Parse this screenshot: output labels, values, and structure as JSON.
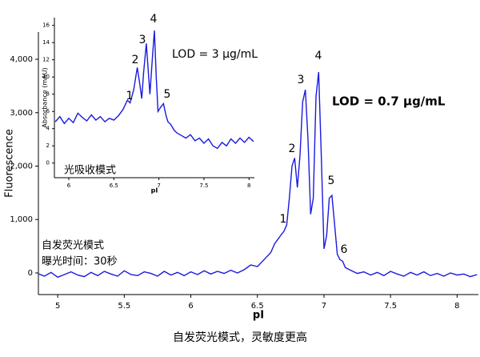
{
  "caption": "自发荧光模式，灵敏度更高",
  "chart_data": [
    {
      "type": "line",
      "x_label": "pI",
      "y_label": "Fluorescence",
      "color": "#1a1adf",
      "xlim": [
        4.855,
        8.16
      ],
      "ylim": [
        -405,
        4510
      ],
      "xticks": [
        5,
        5.5,
        6,
        6.5,
        7,
        7.5,
        8
      ],
      "yticks": [
        0,
        {
          "value": 1000,
          "label": "1,000"
        },
        {
          "value": 2000,
          "label": "2,000"
        },
        {
          "value": 3000,
          "label": "3,000"
        },
        {
          "value": 4000,
          "label": "4,000"
        }
      ],
      "x": [
        4.86,
        4.9,
        4.95,
        5,
        5.05,
        5.1,
        5.15,
        5.2,
        5.25,
        5.3,
        5.35,
        5.4,
        5.45,
        5.5,
        5.55,
        5.6,
        5.65,
        5.7,
        5.75,
        5.8,
        5.85,
        5.9,
        5.95,
        6,
        6.05,
        6.1,
        6.15,
        6.2,
        6.25,
        6.3,
        6.35,
        6.4,
        6.45,
        6.5,
        6.55,
        6.6,
        6.63,
        6.66,
        6.68,
        6.7,
        6.72,
        6.74,
        6.76,
        6.78,
        6.8,
        6.82,
        6.84,
        6.86,
        6.88,
        6.9,
        6.92,
        6.94,
        6.96,
        6.98,
        7,
        7.02,
        7.04,
        7.06,
        7.08,
        7.1,
        7.12,
        7.14,
        7.16,
        7.2,
        7.25,
        7.3,
        7.35,
        7.4,
        7.45,
        7.5,
        7.55,
        7.6,
        7.65,
        7.7,
        7.75,
        7.8,
        7.85,
        7.9,
        7.95,
        8,
        8.05,
        8.1,
        8.15
      ],
      "values": [
        -20,
        -60,
        10,
        -80,
        -30,
        20,
        -40,
        -70,
        10,
        -50,
        30,
        -20,
        -60,
        40,
        -30,
        -50,
        20,
        -10,
        -60,
        30,
        -40,
        10,
        -50,
        20,
        -30,
        40,
        -20,
        30,
        -10,
        50,
        0,
        60,
        150,
        120,
        250,
        380,
        550,
        650,
        720,
        780,
        900,
        1400,
        2000,
        2150,
        1600,
        2200,
        3200,
        3430,
        2500,
        1100,
        1400,
        3300,
        3760,
        2200,
        450,
        700,
        1400,
        1450,
        900,
        350,
        250,
        220,
        100,
        50,
        -10,
        20,
        -40,
        10,
        -50,
        30,
        -20,
        -60,
        10,
        -40,
        20,
        -50,
        -10,
        -60,
        0,
        -40,
        -20,
        -70,
        -30
      ],
      "annotations": [
        "1",
        "2",
        "3",
        "4",
        "5",
        "6",
        "自发荧光模式",
        "曝光时间：30秒",
        "LOD = 0.7 μg/mL"
      ]
    },
    {
      "type": "line",
      "x_label": "pI",
      "y_label": "Absorbance (mAU)",
      "color": "#1a1adf",
      "xlim": [
        5.84,
        8.06
      ],
      "ylim": [
        -1.7,
        16.9
      ],
      "xticks": [
        6,
        6.5,
        7,
        7.5,
        8
      ],
      "yticks": [
        0,
        2,
        4,
        6,
        8,
        10,
        12,
        14,
        16
      ],
      "x": [
        5.85,
        5.9,
        5.95,
        6,
        6.05,
        6.1,
        6.15,
        6.2,
        6.25,
        6.3,
        6.35,
        6.4,
        6.45,
        6.5,
        6.55,
        6.6,
        6.65,
        6.68,
        6.72,
        6.76,
        6.79,
        6.81,
        6.83,
        6.86,
        6.88,
        6.9,
        6.93,
        6.95,
        6.97,
        6.99,
        7.02,
        7.05,
        7.08,
        7.1,
        7.13,
        7.17,
        7.2,
        7.25,
        7.3,
        7.35,
        7.4,
        7.45,
        7.5,
        7.55,
        7.6,
        7.65,
        7.7,
        7.75,
        7.8,
        7.85,
        7.9,
        7.95,
        8,
        8.05
      ],
      "values": [
        4.8,
        5.4,
        4.6,
        5.2,
        4.7,
        5.8,
        5.3,
        4.9,
        5.6,
        5.0,
        5.4,
        4.8,
        5.2,
        5.0,
        5.5,
        6.2,
        7.3,
        7.0,
        8.5,
        11.1,
        9.0,
        7.5,
        10.5,
        13.9,
        11.0,
        8.0,
        12.5,
        15.4,
        10.0,
        6.0,
        6.5,
        6.9,
        5.5,
        4.8,
        4.5,
        3.8,
        3.5,
        3.2,
        2.9,
        3.3,
        2.6,
        2.9,
        2.3,
        2.8,
        2.0,
        1.7,
        2.4,
        2.0,
        2.8,
        2.3,
        2.9,
        2.4,
        3.0,
        2.5
      ],
      "annotations": [
        "1",
        "2",
        "3",
        "4",
        "5",
        "LOD = 3 μg/mL",
        "光吸收模式"
      ]
    }
  ]
}
